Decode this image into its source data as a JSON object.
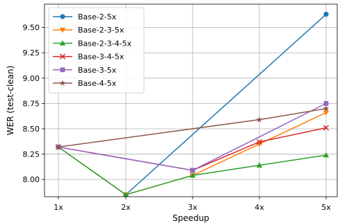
{
  "chart_data": {
    "type": "line",
    "title": "",
    "xlabel": "Speedup",
    "ylabel": "WER (test-clean)",
    "categories": [
      "1x",
      "2x",
      "3x",
      "4x",
      "5x"
    ],
    "ylim": [
      7.83,
      9.73
    ],
    "yticks": [
      8.0,
      8.25,
      8.5,
      8.75,
      9.0,
      9.25,
      9.5
    ],
    "ytick_labels": [
      "8.00",
      "8.25",
      "8.50",
      "8.75",
      "9.00",
      "9.25",
      "9.50"
    ],
    "grid": true,
    "legend_position": "top-left",
    "series": [
      {
        "name": "Base-2-5x",
        "color": "#1f77b4",
        "marker": "circle",
        "values": [
          8.32,
          7.85,
          null,
          null,
          9.63
        ]
      },
      {
        "name": "Base-2-3-5x",
        "color": "#ff7f0e",
        "marker": "triangle-down",
        "values": [
          8.32,
          7.85,
          8.04,
          8.35,
          8.66
        ]
      },
      {
        "name": "Base-2-3-4-5x",
        "color": "#2ca02c",
        "marker": "triangle-up",
        "values": [
          8.32,
          7.85,
          8.04,
          8.14,
          8.24
        ]
      },
      {
        "name": "Base-3-4-5x",
        "color": "#d62728",
        "marker": "x",
        "values": [
          8.32,
          null,
          8.09,
          8.37,
          8.51
        ]
      },
      {
        "name": "Base-3-5x",
        "color": "#9467bd",
        "marker": "square",
        "values": [
          8.32,
          null,
          8.09,
          null,
          8.75
        ]
      },
      {
        "name": "Base-4-5x",
        "color": "#8c564b",
        "marker": "star",
        "values": [
          8.32,
          null,
          null,
          8.59,
          8.7
        ]
      }
    ]
  }
}
